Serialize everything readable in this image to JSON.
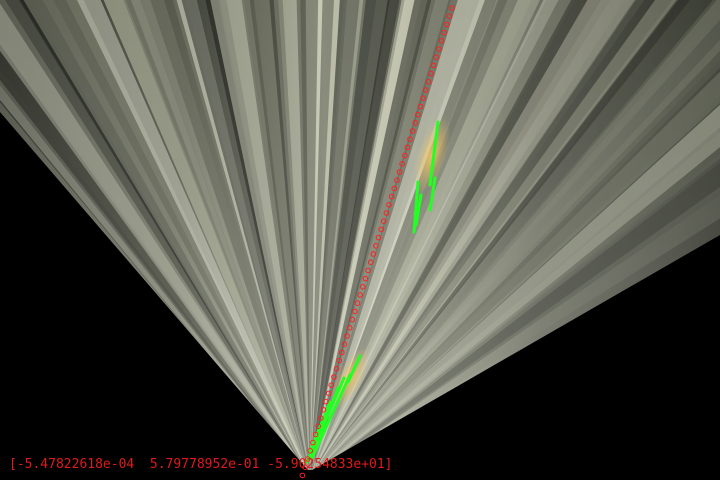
{
  "overlay": {
    "fit_coefficients_text": "[-5.47822618e-04  5.79778952e-01 -5.90254833e+01]"
  },
  "colors": {
    "background": "#000000",
    "fit_curve": "#ff2020",
    "lane_pixels": "#22ff22",
    "lane_marking": "#e9c46a",
    "road_light": "#d6d8c4",
    "road_dark": "#3d3f35"
  },
  "icons": {
    "fit_points": "red-circle-markers",
    "lane_detection": "green-pixel-segments"
  }
}
